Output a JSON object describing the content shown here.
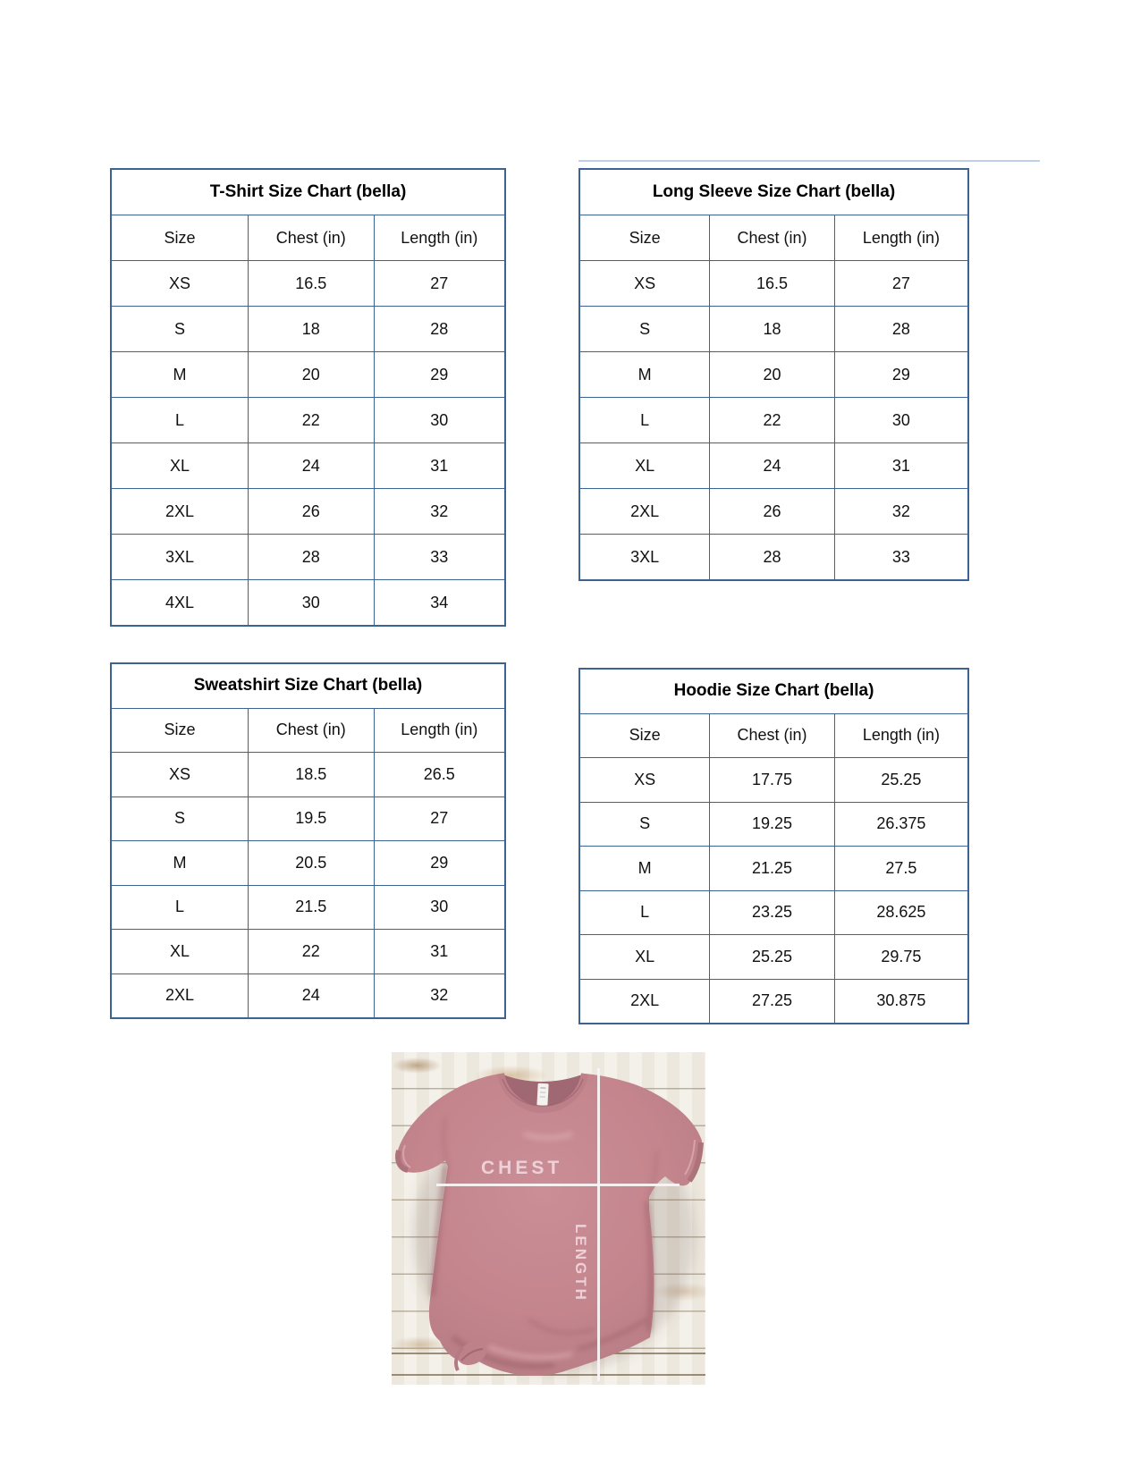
{
  "colors": {
    "table_border": "#3b6394",
    "artifact_line": "#b3c6e7",
    "shirt_mauve": "#c4858d",
    "measure_line": "#faf4f4",
    "wood_base": "#f2eee6"
  },
  "tables": [
    {
      "id": "tshirt",
      "title": "T-Shirt Size Chart  (bella)",
      "columns": [
        "Size",
        "Chest (in)",
        "Length (in)"
      ],
      "col_widths": [
        "34.8%",
        "31.9%",
        "33.3%"
      ],
      "rows": [
        [
          "XS",
          "16.5",
          "27"
        ],
        [
          "S",
          "18",
          "28"
        ],
        [
          "M",
          "20",
          "29"
        ],
        [
          "L",
          "22",
          "30"
        ],
        [
          "XL",
          "24",
          "31"
        ],
        [
          "2XL",
          "26",
          "32"
        ],
        [
          "3XL",
          "28",
          "33"
        ],
        [
          "4XL",
          "30",
          "34"
        ]
      ]
    },
    {
      "id": "longsleeve",
      "title": "Long Sleeve Size Chart  (bella)",
      "columns": [
        "Size",
        "Chest (in)",
        "Length (in)"
      ],
      "col_widths": [
        "33.5%",
        "32.1%",
        "34.4%"
      ],
      "rows": [
        [
          "XS",
          "16.5",
          "27"
        ],
        [
          "S",
          "18",
          "28"
        ],
        [
          "M",
          "20",
          "29"
        ],
        [
          "L",
          "22",
          "30"
        ],
        [
          "XL",
          "24",
          "31"
        ],
        [
          "2XL",
          "26",
          "32"
        ],
        [
          "3XL",
          "28",
          "33"
        ]
      ]
    },
    {
      "id": "sweatshirt",
      "title": "Sweatshirt Size Chart (bella)",
      "columns": [
        "Size",
        "Chest (in)",
        "Length (in)"
      ],
      "col_widths": [
        "34.8%",
        "31.9%",
        "33.3%"
      ],
      "rows": [
        [
          "XS",
          "18.5",
          "26.5"
        ],
        [
          "S",
          "19.5",
          "27"
        ],
        [
          "M",
          "20.5",
          "29"
        ],
        [
          "L",
          "21.5",
          "30"
        ],
        [
          "XL",
          "22",
          "31"
        ],
        [
          "2XL",
          "24",
          "32"
        ]
      ]
    },
    {
      "id": "hoodie",
      "title": "Hoodie Size Chart (bella)",
      "columns": [
        "Size",
        "Chest (in)",
        "Length (in)"
      ],
      "col_widths": [
        "33.5%",
        "32.1%",
        "34.4%"
      ],
      "rows": [
        [
          "XS",
          "17.75",
          "25.25"
        ],
        [
          "S",
          "19.25",
          "26.375"
        ],
        [
          "M",
          "21.25",
          "27.5"
        ],
        [
          "L",
          "23.25",
          "28.625"
        ],
        [
          "XL",
          "25.25",
          "29.75"
        ],
        [
          "2XL",
          "27.25",
          "30.875"
        ]
      ]
    }
  ],
  "photo": {
    "chest_label": "CHEST",
    "length_label": "LENGTH"
  }
}
